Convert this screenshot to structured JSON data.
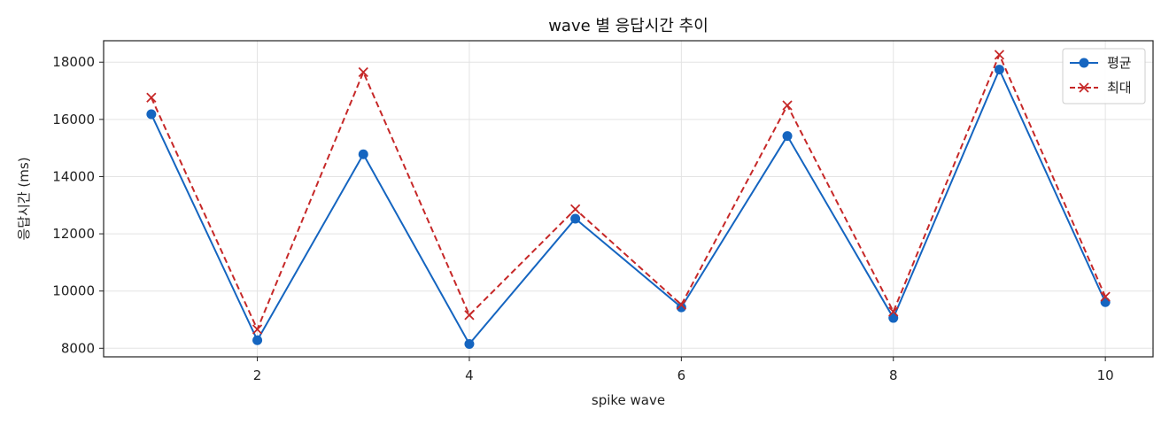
{
  "chart_data": {
    "type": "line",
    "title": "wave 별 응답시간 추이",
    "xlabel": "spike wave",
    "ylabel": "응답시간 (ms)",
    "x": [
      1,
      2,
      3,
      4,
      5,
      6,
      7,
      8,
      9,
      10
    ],
    "xlim": [
      0.55,
      10.45
    ],
    "ylim": [
      7700,
      18750
    ],
    "xticks": [
      2,
      4,
      6,
      8,
      10
    ],
    "yticks": [
      8000,
      10000,
      12000,
      14000,
      16000,
      18000
    ],
    "grid": true,
    "legend_position": "top-right",
    "series": [
      {
        "name": "평균",
        "color": "#1565c0",
        "line_style": "solid",
        "marker": "circle",
        "values": [
          16180,
          8280,
          14780,
          8150,
          12530,
          9430,
          15420,
          9060,
          17740,
          9610
        ]
      },
      {
        "name": "최대",
        "color": "#c62828",
        "line_style": "dashed",
        "marker": "x",
        "values": [
          16760,
          8660,
          17650,
          9160,
          12860,
          9520,
          16490,
          9280,
          18260,
          9800
        ]
      }
    ]
  }
}
